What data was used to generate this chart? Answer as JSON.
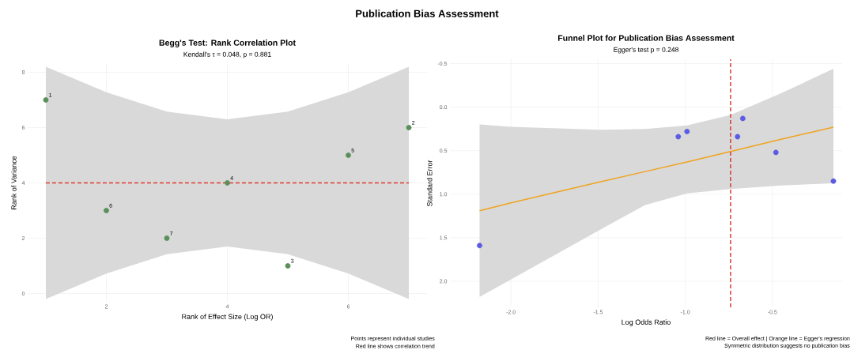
{
  "chart_data": [
    {
      "type": "scatter",
      "title": "Begg's Test: Rank Correlation Plot",
      "subtitle": "Kendall's τ = 0.048, p = 0.881",
      "xlabel": "Rank of Effect Size (Log OR)",
      "ylabel": "Rank of Variance",
      "annotations": [
        "Publication Bias Assessment",
        "Points represent individual studies",
        "Red line shows correlation trend",
        {
          "text": "1",
          "x": 1,
          "y": 7
        },
        {
          "text": "2",
          "x": 7,
          "y": 6
        },
        {
          "text": "3",
          "x": 5,
          "y": 1
        },
        {
          "text": "4",
          "x": 4,
          "y": 4
        },
        {
          "text": "5",
          "x": 6,
          "y": 5
        },
        {
          "text": "6",
          "x": 2,
          "y": 3
        },
        {
          "text": "7",
          "x": 3,
          "y": 2
        }
      ],
      "xlim": [
        0.7,
        7.3
      ],
      "ylim": [
        -0.3,
        8.3
      ],
      "xticks": [
        2,
        4,
        6
      ],
      "yticks": [
        0,
        2,
        4,
        6,
        8
      ],
      "grid": true,
      "series": [
        {
          "color": "#5a8f5a",
          "marker": "circle",
          "x": [
            1,
            7,
            5,
            4,
            6,
            2,
            3
          ],
          "values": [
            7,
            6,
            1,
            4,
            5,
            3,
            2
          ]
        },
        {
          "type": "line",
          "color": "#e03a2e",
          "line_style": "dashed",
          "x": [
            1,
            2,
            3,
            4,
            5,
            6,
            7
          ],
          "values": [
            4,
            4,
            4,
            4,
            4,
            4,
            4
          ],
          "lower": [
            -0.2,
            0.72,
            1.42,
            1.7,
            1.42,
            0.72,
            -0.2
          ],
          "upper": [
            8.2,
            7.28,
            6.58,
            6.3,
            6.58,
            7.28,
            8.2
          ]
        }
      ]
    },
    {
      "type": "scatter",
      "title": "Funnel Plot for Publication Bias Assessment",
      "subtitle": "Egger's test p = 0.248",
      "xlabel": "Log Odds Ratio",
      "ylabel": "Standard Error",
      "annotations": [
        "Red line = Overall effect | Orange line = Egger's regression",
        "Symmetric distribution suggests no publication bias"
      ],
      "xlim": [
        -2.35,
        -0.1
      ],
      "ylim": [
        2.3,
        -0.55
      ],
      "xticks": [
        {
          "value": -2,
          "label": "-2.0"
        },
        -1.5,
        {
          "value": -1,
          "label": "-1.0"
        },
        -0.5
      ],
      "yticks": [
        -0.5,
        {
          "value": 0,
          "label": "0.0"
        },
        0.5,
        {
          "value": 1,
          "label": "1.0"
        },
        1.5,
        {
          "value": 2,
          "label": "2.0"
        }
      ],
      "grid": true,
      "ref_lines": [
        {
          "axis": "x",
          "value": -0.74,
          "color": "#d62f2f",
          "line_style": "dashed"
        }
      ],
      "series": [
        {
          "type": "line",
          "color": "#f0a31c",
          "line_style": "solid",
          "x": [
            -2.18,
            -2.0,
            -1.49,
            -1.23,
            -0.99,
            -0.74,
            -0.45,
            -0.15
          ],
          "values": [
            1.19,
            1.1,
            0.86,
            0.74,
            0.63,
            0.51,
            0.37,
            0.23
          ],
          "lower": [
            0.2,
            0.225,
            0.26,
            0.25,
            0.21,
            0.09,
            -0.16,
            -0.44
          ],
          "upper": [
            2.18,
            1.98,
            1.41,
            1.125,
            0.99,
            0.94,
            0.9,
            0.875
          ]
        },
        {
          "color": "#5b5be3",
          "marker": "circle",
          "x": [
            -2.18,
            -1.04,
            -0.99,
            -0.7,
            -0.67,
            -0.48,
            -0.15
          ],
          "values": [
            1.59,
            0.34,
            0.28,
            0.34,
            0.13,
            0.52,
            0.85
          ]
        }
      ]
    }
  ]
}
